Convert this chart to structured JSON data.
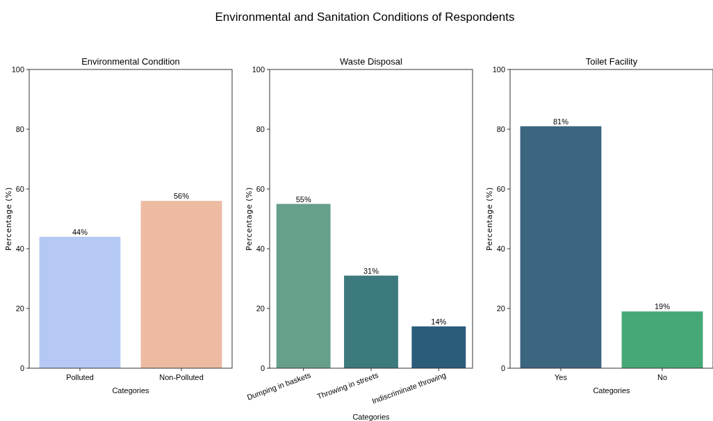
{
  "chart_data": [
    {
      "type": "other",
      "title": "Environmental and Sanitation Conditions of Respondents"
    },
    {
      "type": "bar",
      "title": "Environmental Condition",
      "xlabel": "Categories",
      "ylabel": "Percentage (%)",
      "categories": [
        "Polluted",
        "Non-Polluted"
      ],
      "values": [
        44,
        56
      ],
      "colors": [
        "#b5c9f4",
        "#ecbba2"
      ],
      "value_labels": [
        "44%",
        "56%"
      ],
      "ylim": [
        0,
        100
      ],
      "yticks": [
        0,
        20,
        40,
        60,
        80,
        100
      ],
      "grid": false
    },
    {
      "type": "bar",
      "title": "Waste Disposal",
      "xlabel": "Categories",
      "ylabel": "Percentage (%)",
      "categories": [
        "Dumping in baskets",
        "Throwing in streets",
        "Indiscriminate throwing"
      ],
      "values": [
        55,
        31,
        14
      ],
      "colors": [
        "#66a08b",
        "#3d7a7d",
        "#2b5c7a"
      ],
      "value_labels": [
        "55%",
        "31%",
        "14%"
      ],
      "ylim": [
        0,
        100
      ],
      "yticks": [
        0,
        20,
        40,
        60,
        80,
        100
      ],
      "grid": false
    },
    {
      "type": "bar",
      "title": "Toilet Facility",
      "xlabel": "Categories",
      "ylabel": "Percentage (%)",
      "categories": [
        "Yes",
        "No"
      ],
      "values": [
        81,
        19
      ],
      "colors": [
        "#3c6580",
        "#45a876"
      ],
      "value_labels": [
        "81%",
        "19%"
      ],
      "ylim": [
        0,
        100
      ],
      "yticks": [
        0,
        20,
        40,
        60,
        80,
        100
      ],
      "grid": false
    }
  ]
}
